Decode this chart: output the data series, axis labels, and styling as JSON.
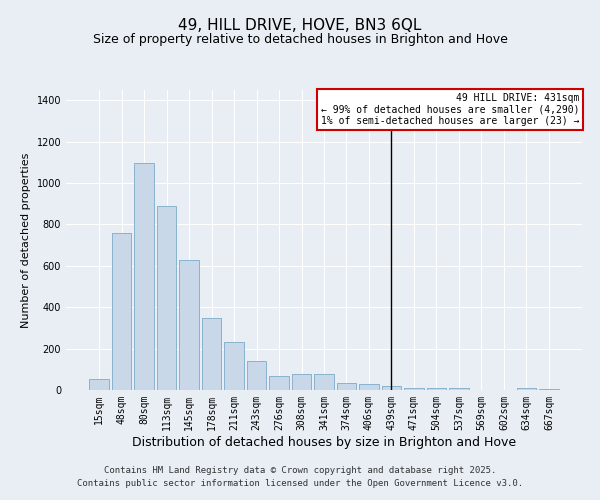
{
  "title": "49, HILL DRIVE, HOVE, BN3 6QL",
  "subtitle": "Size of property relative to detached houses in Brighton and Hove",
  "xlabel": "Distribution of detached houses by size in Brighton and Hove",
  "ylabel": "Number of detached properties",
  "categories": [
    "15sqm",
    "48sqm",
    "80sqm",
    "113sqm",
    "145sqm",
    "178sqm",
    "211sqm",
    "243sqm",
    "276sqm",
    "308sqm",
    "341sqm",
    "374sqm",
    "406sqm",
    "439sqm",
    "471sqm",
    "504sqm",
    "537sqm",
    "569sqm",
    "602sqm",
    "634sqm",
    "667sqm"
  ],
  "values": [
    55,
    760,
    1095,
    890,
    630,
    350,
    233,
    140,
    70,
    75,
    75,
    35,
    30,
    20,
    12,
    8,
    8,
    2,
    0,
    8,
    5
  ],
  "bar_color": "#c8d8e8",
  "bar_edge_color": "#7aaac8",
  "vline_index": 13,
  "vline_color": "#000000",
  "ylim": [
    0,
    1450
  ],
  "yticks": [
    0,
    200,
    400,
    600,
    800,
    1000,
    1200,
    1400
  ],
  "annotation_title": "49 HILL DRIVE: 431sqm",
  "annotation_line1": "← 99% of detached houses are smaller (4,290)",
  "annotation_line2": "1% of semi-detached houses are larger (23) →",
  "annotation_box_color": "#ffffff",
  "annotation_border_color": "#cc0000",
  "footer_line1": "Contains HM Land Registry data © Crown copyright and database right 2025.",
  "footer_line2": "Contains public sector information licensed under the Open Government Licence v3.0.",
  "background_color": "#e8eef4",
  "grid_color": "#ffffff",
  "title_fontsize": 11,
  "subtitle_fontsize": 9,
  "xlabel_fontsize": 9,
  "ylabel_fontsize": 8,
  "tick_fontsize": 7,
  "footer_fontsize": 6.5,
  "annotation_fontsize": 7
}
